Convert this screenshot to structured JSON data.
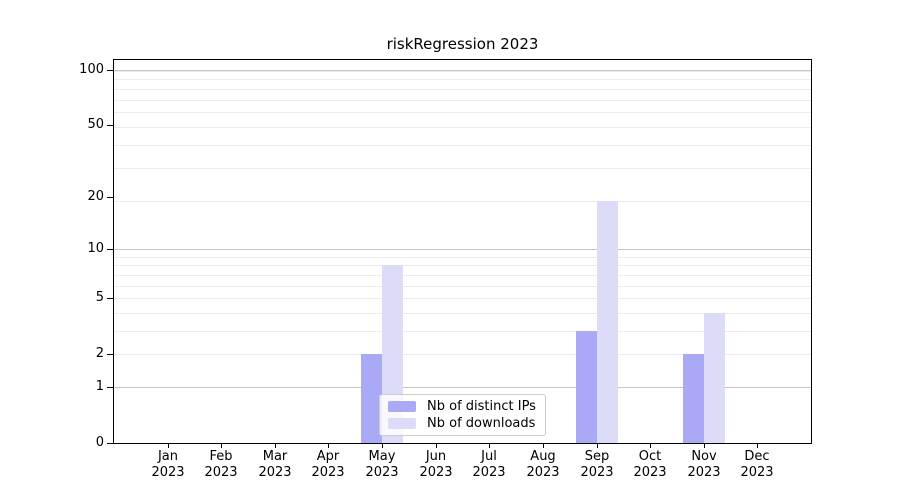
{
  "chart_data": {
    "type": "bar",
    "title": "riskRegression 2023",
    "xlabel": "",
    "ylabel": "",
    "categories": [
      "Jan",
      "Feb",
      "Mar",
      "Apr",
      "May",
      "Jun",
      "Jul",
      "Aug",
      "Sep",
      "Oct",
      "Nov",
      "Dec"
    ],
    "year_label": "2023",
    "series": [
      {
        "name": "Nb of distinct IPs",
        "color": "#a9a9f6",
        "values": [
          0,
          0,
          0,
          0,
          2,
          0,
          0,
          0,
          3,
          0,
          2,
          0
        ]
      },
      {
        "name": "Nb of downloads",
        "color": "#dcdcf9",
        "values": [
          0,
          0,
          0,
          0,
          8,
          0,
          0,
          0,
          19,
          0,
          4,
          0
        ]
      }
    ],
    "y_axis": {
      "scale": "log10(1+x)",
      "ylim": [
        0,
        113
      ],
      "tick_values": [
        0,
        1,
        2,
        5,
        10,
        20,
        50,
        100
      ],
      "tick_labels": [
        "0",
        "1",
        "2",
        "5",
        "10",
        "20",
        "50",
        "100"
      ],
      "major_grid": [
        1,
        10,
        100
      ],
      "minor_grid": [
        2,
        3,
        4,
        5,
        6,
        7,
        8,
        9,
        19,
        29,
        39,
        49,
        59,
        69,
        79,
        89,
        99
      ]
    },
    "grid": "horizontal",
    "legend": {
      "position": "lower-center-left-inside",
      "entries": [
        {
          "label": "Nb of distinct IPs",
          "color": "#a9a9f6"
        },
        {
          "label": "Nb of downloads",
          "color": "#dcdcf9"
        }
      ]
    }
  }
}
